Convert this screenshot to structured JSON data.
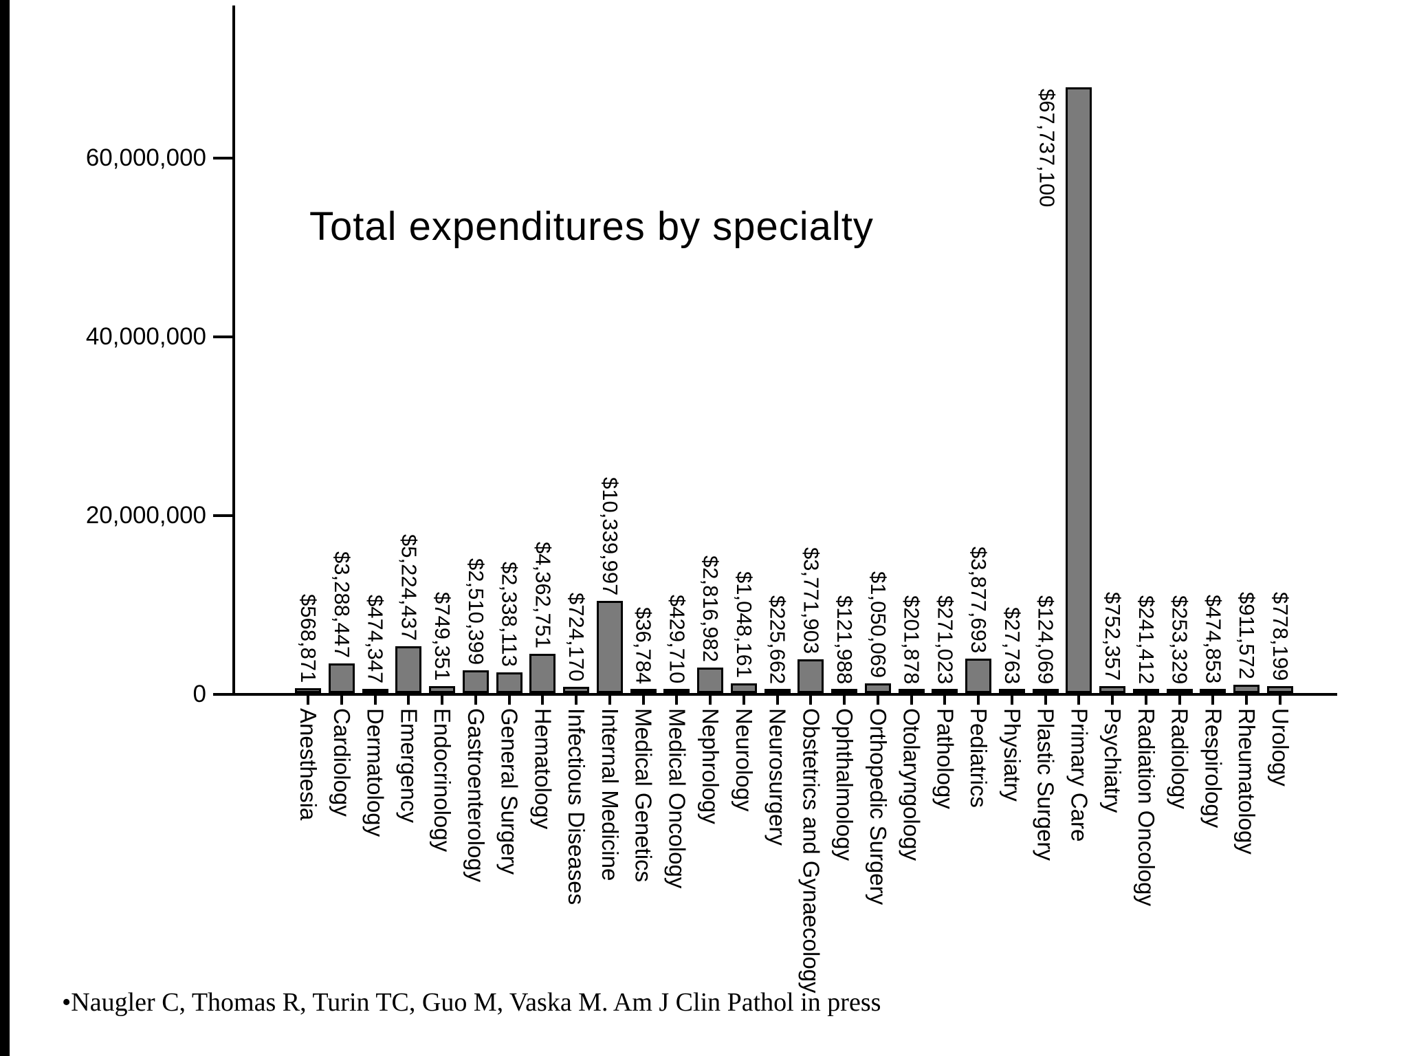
{
  "title": "Total expenditures by specialty",
  "citation": "•Naugler C, Thomas R, Turin TC, Guo M, Vaska M. Am J Clin Pathol in press",
  "colors": {
    "bar_fill": "#7b7b7b",
    "bar_border": "#000000",
    "axis": "#000000",
    "background": "#ffffff",
    "text": "#000000"
  },
  "chart_data": {
    "type": "bar",
    "title": "Total expenditures by specialty",
    "xlabel": "",
    "ylabel": "",
    "ylim": [
      0,
      70000000
    ],
    "grid": false,
    "legend": false,
    "y_ticks": [
      {
        "value": 0,
        "label": "0"
      },
      {
        "value": 20000000,
        "label": "20,000,000"
      },
      {
        "value": 40000000,
        "label": "40,000,000"
      },
      {
        "value": 60000000,
        "label": "60,000,000"
      }
    ],
    "categories": [
      "Anesthesia",
      "Cardiology",
      "Dermatology",
      "Emergency",
      "Endocrinology",
      "Gastroenterology",
      "General Surgery",
      "Hematology",
      "Infectious Diseases",
      "Internal Medicine",
      "Medical Genetics",
      "Medical Oncology",
      "Nephrology",
      "Neurology",
      "Neurosurgery",
      "Obstetrics and Gynaecology",
      "Ophthalmology",
      "Orthopedic Surgery",
      "Otolaryngology",
      "Pathology",
      "Pediatrics",
      "Physiatry",
      "Plastic Surgery",
      "Primary Care",
      "Psychiatry",
      "Radiation Oncology",
      "Radiology",
      "Respirology",
      "Rheumatology",
      "Urology"
    ],
    "values": [
      568871,
      3288447,
      474347,
      5224437,
      749351,
      2510399,
      2338113,
      4362751,
      724170,
      10339997,
      36784,
      429710,
      2816982,
      1048161,
      225662,
      3771903,
      121988,
      1050069,
      201878,
      271023,
      3877693,
      27763,
      124069,
      67737100,
      752357,
      241412,
      253329,
      474853,
      911572,
      778199
    ],
    "value_labels": [
      "$568,871",
      "$3,288,447",
      "$474,347",
      "$5,224,437",
      "$749,351",
      "$2,510,399",
      "$2,338,113",
      "$4,362,751",
      "$724,170",
      "$10,339,997",
      "$36,784",
      "$429,710",
      "$2,816,982",
      "$1,048,161",
      "$225,662",
      "$3,771,903",
      "$121,988",
      "$1,050,069",
      "$201,878",
      "$271,023",
      "$3,877,693",
      "$27,763",
      "$124,069",
      "$67,737,100",
      "$752,357",
      "$241,412",
      "$253,329",
      "$474,853",
      "$911,572",
      "$778,199"
    ]
  }
}
